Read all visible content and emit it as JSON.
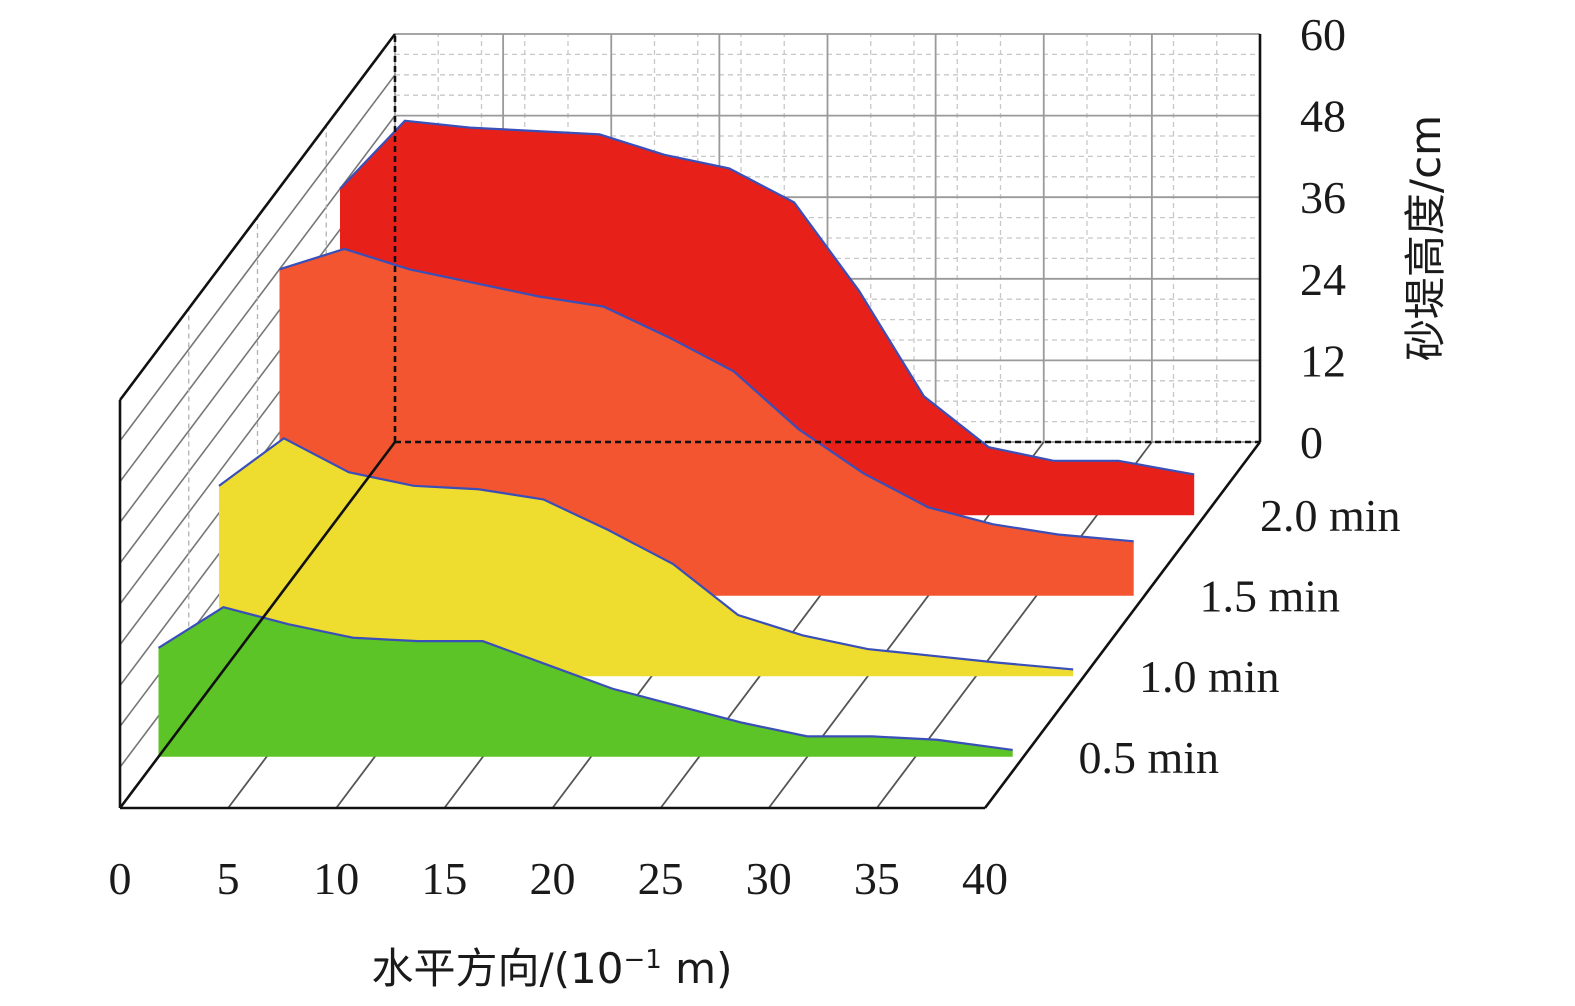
{
  "chart_data": {
    "type": "area",
    "x_ticks": [
      "0",
      "5",
      "10",
      "15",
      "20",
      "25",
      "30",
      "35",
      "40"
    ],
    "y_ticks": [
      "0",
      "12",
      "24",
      "36",
      "48",
      "60"
    ],
    "xlabel_main": "水平方向/(10",
    "xlabel_sup": "−1",
    "xlabel_tail": " m)",
    "ylabel": "砂堤高度/cm",
    "xlim": [
      0,
      40
    ],
    "ylim": [
      0,
      60
    ],
    "grid": true,
    "series": [
      {
        "name": "0.5 min",
        "color": "#5cc426",
        "x": [
          0,
          3,
          6,
          9,
          12,
          15,
          18,
          21,
          24,
          27,
          30,
          33,
          36,
          39.5
        ],
        "y": [
          16,
          22,
          19.5,
          17.5,
          17,
          17,
          13.5,
          10,
          7.5,
          5,
          3,
          3,
          2.5,
          1
        ]
      },
      {
        "name": "1.0 min",
        "color": "#eedd2e",
        "x": [
          0,
          3,
          6,
          9,
          12,
          15,
          18,
          21,
          24,
          27,
          30,
          33,
          36,
          39.5
        ],
        "y": [
          28,
          35,
          30,
          28,
          27.5,
          26,
          21.5,
          16.5,
          9,
          6,
          4,
          3,
          2,
          1
        ]
      },
      {
        "name": "1.5 min",
        "color": "#f25530",
        "x": [
          0,
          3,
          6,
          9,
          12,
          15,
          18,
          21,
          24,
          27,
          30,
          33,
          36,
          39.5
        ],
        "y": [
          48,
          51,
          48,
          46,
          44,
          42.5,
          38,
          33,
          24.5,
          18,
          13,
          10.5,
          9,
          8
        ]
      },
      {
        "name": "2.0 min",
        "color": "#e8201a",
        "x": [
          0,
          3,
          6,
          9,
          12,
          15,
          18,
          21,
          24,
          27,
          30,
          33,
          36,
          39.5
        ],
        "y": [
          48,
          58,
          57,
          56.5,
          56,
          53,
          51,
          46,
          33,
          17.5,
          10,
          8,
          8,
          6
        ]
      }
    ]
  }
}
